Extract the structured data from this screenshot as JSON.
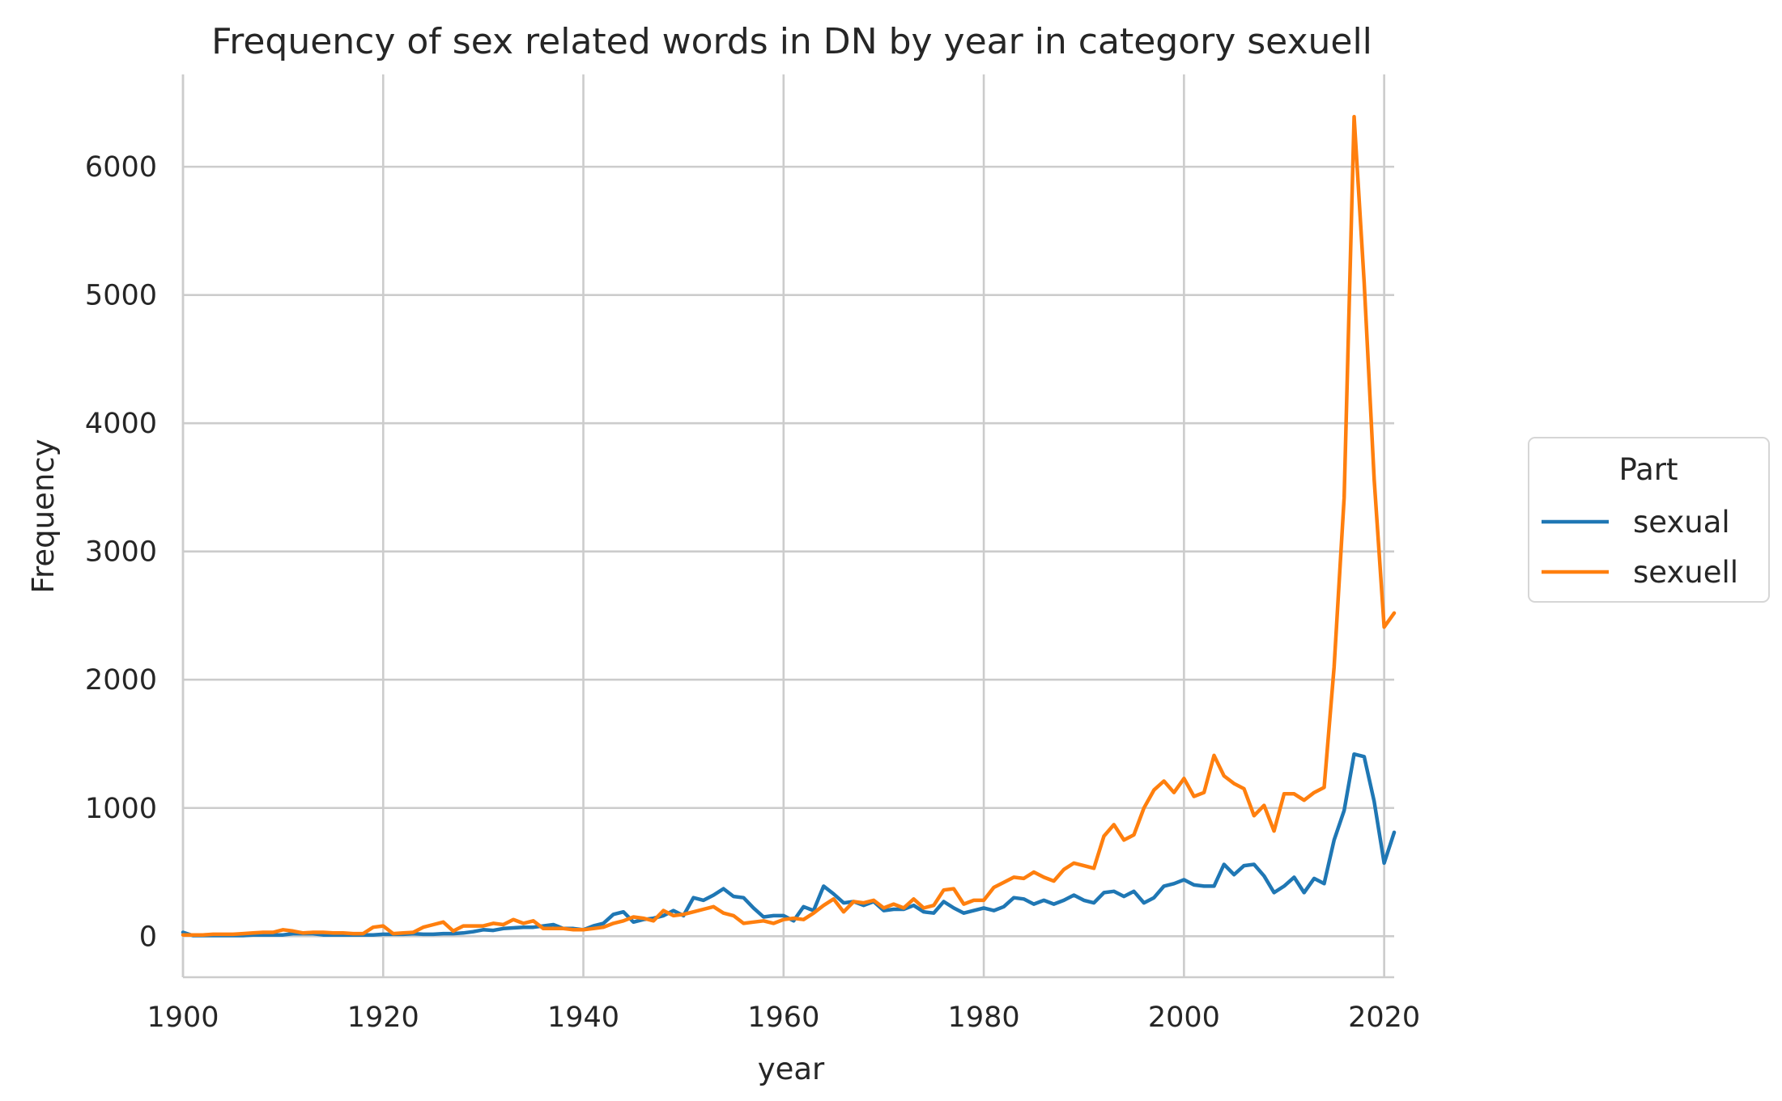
{
  "chart_data": {
    "type": "line",
    "title": "Frequency of sex related words in DN by year in category sexuell",
    "xlabel": "year",
    "ylabel": "Frequency",
    "xlim": [
      1900,
      2021
    ],
    "ylim": [
      -320,
      6720
    ],
    "x_ticks": [
      1900,
      1920,
      1940,
      1960,
      1980,
      2000,
      2020
    ],
    "y_ticks": [
      0,
      1000,
      2000,
      3000,
      4000,
      5000,
      6000
    ],
    "grid": true,
    "legend": {
      "title": "Part",
      "placement": "center-right outside"
    },
    "x": [
      1900,
      1901,
      1902,
      1903,
      1904,
      1905,
      1906,
      1907,
      1908,
      1909,
      1910,
      1911,
      1912,
      1913,
      1914,
      1915,
      1916,
      1917,
      1918,
      1919,
      1920,
      1921,
      1922,
      1923,
      1924,
      1925,
      1926,
      1927,
      1928,
      1929,
      1930,
      1931,
      1932,
      1933,
      1934,
      1935,
      1936,
      1937,
      1938,
      1939,
      1940,
      1941,
      1942,
      1943,
      1944,
      1945,
      1946,
      1947,
      1948,
      1949,
      1950,
      1951,
      1952,
      1953,
      1954,
      1955,
      1956,
      1957,
      1958,
      1959,
      1960,
      1961,
      1962,
      1963,
      1964,
      1965,
      1966,
      1967,
      1968,
      1969,
      1970,
      1971,
      1972,
      1973,
      1974,
      1975,
      1976,
      1977,
      1978,
      1979,
      1980,
      1981,
      1982,
      1983,
      1984,
      1985,
      1986,
      1987,
      1988,
      1989,
      1990,
      1991,
      1992,
      1993,
      1994,
      1995,
      1996,
      1997,
      1998,
      1999,
      2000,
      2001,
      2002,
      2003,
      2004,
      2005,
      2006,
      2007,
      2008,
      2009,
      2010,
      2011,
      2012,
      2013,
      2014,
      2015,
      2016,
      2017,
      2018,
      2019,
      2020,
      2021
    ],
    "series": [
      {
        "name": "sexual",
        "color": "#1f77b4",
        "values": [
          30,
          5,
          5,
          5,
          5,
          5,
          5,
          10,
          10,
          10,
          10,
          20,
          20,
          20,
          10,
          10,
          10,
          10,
          10,
          10,
          15,
          15,
          15,
          20,
          15,
          15,
          20,
          20,
          25,
          35,
          50,
          45,
          60,
          65,
          70,
          70,
          80,
          90,
          60,
          60,
          50,
          80,
          100,
          170,
          190,
          110,
          130,
          140,
          160,
          200,
          160,
          300,
          280,
          320,
          370,
          310,
          300,
          220,
          150,
          160,
          160,
          120,
          230,
          200,
          390,
          330,
          260,
          270,
          240,
          270,
          200,
          210,
          210,
          240,
          190,
          180,
          270,
          220,
          180,
          200,
          220,
          200,
          230,
          300,
          290,
          250,
          280,
          250,
          280,
          320,
          280,
          260,
          340,
          350,
          310,
          350,
          260,
          300,
          390,
          410,
          440,
          400,
          390,
          390,
          560,
          480,
          550,
          560,
          470,
          340,
          390,
          460,
          340,
          450,
          410,
          750,
          980,
          1420,
          1400,
          1050,
          570,
          810
        ]
      },
      {
        "name": "sexuell",
        "color": "#ff7f0e",
        "values": [
          10,
          10,
          10,
          15,
          15,
          15,
          20,
          25,
          30,
          30,
          50,
          40,
          25,
          30,
          30,
          25,
          25,
          20,
          20,
          70,
          80,
          20,
          25,
          30,
          70,
          90,
          110,
          40,
          80,
          80,
          80,
          100,
          90,
          130,
          100,
          120,
          60,
          60,
          60,
          50,
          50,
          60,
          70,
          100,
          120,
          150,
          140,
          120,
          200,
          160,
          170,
          190,
          210,
          230,
          180,
          160,
          100,
          110,
          120,
          100,
          130,
          140,
          130,
          180,
          240,
          290,
          190,
          270,
          260,
          280,
          220,
          250,
          220,
          290,
          220,
          240,
          360,
          370,
          250,
          280,
          280,
          380,
          420,
          460,
          450,
          500,
          460,
          430,
          520,
          570,
          550,
          530,
          780,
          870,
          750,
          790,
          1000,
          1140,
          1210,
          1120,
          1230,
          1090,
          1120,
          1410,
          1250,
          1190,
          1150,
          940,
          1020,
          820,
          1110,
          1110,
          1060,
          1120,
          1160,
          2100,
          3420,
          6390,
          5100,
          3560,
          2410,
          2520
        ]
      }
    ]
  }
}
